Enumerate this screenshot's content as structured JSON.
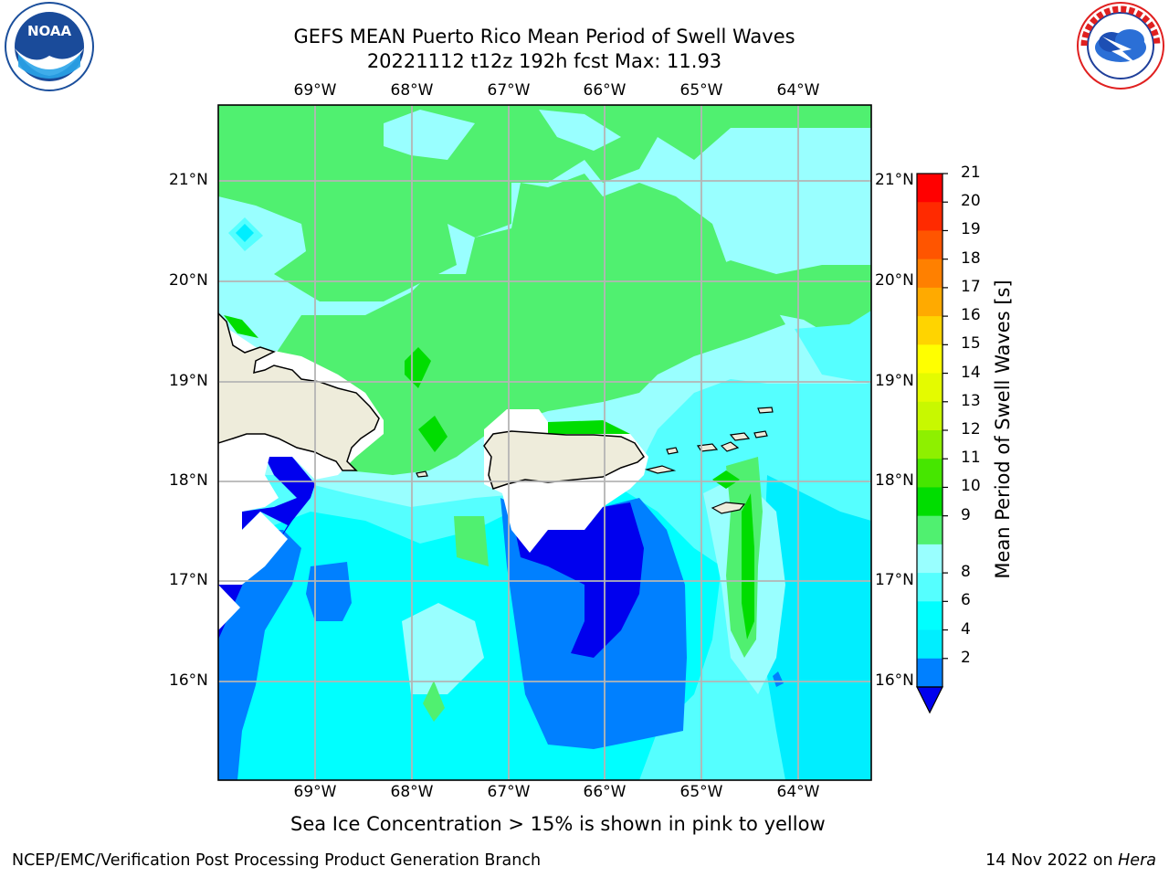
{
  "header": {
    "title_line1": "GEFS MEAN Puerto Rico Mean Period of Swell Waves",
    "title_line2": "20221112 t12z 192h fcst   Max: 11.93"
  },
  "map": {
    "lon_labels": [
      "69°W",
      "68°W",
      "67°W",
      "66°W",
      "65°W",
      "64°W"
    ],
    "lat_labels": [
      "21°N",
      "20°N",
      "19°N",
      "18°N",
      "17°N",
      "16°N"
    ]
  },
  "colorbar": {
    "title": "Mean Period of Swell Waves [s]",
    "ticks": [
      "21",
      "20",
      "19",
      "18",
      "17",
      "16",
      "15",
      "14",
      "13",
      "12",
      "11",
      "10",
      "9",
      "8",
      "6",
      "4",
      "2"
    ],
    "colors_top_to_bottom": [
      "#ff0000",
      "#ff2a00",
      "#ff5500",
      "#ff8000",
      "#ffaa00",
      "#ffd400",
      "#ffff00",
      "#e4fb00",
      "#c8f800",
      "#8ef000",
      "#46e600",
      "#00dd00",
      "#50f070",
      "#99ffff",
      "#55ffff",
      "#00ffff",
      "#00eeff",
      "#0080ff",
      "#0000ee"
    ],
    "accent_colors": {
      "land": "#eeecdb",
      "grid": "#b5b5b5"
    }
  },
  "note": "Sea Ice Concentration > 15% is shown in pink to yellow",
  "footer": {
    "left": "NCEP/EMC/Verification Post Processing Product Generation Branch",
    "date": "14 Nov 2022 on ",
    "host": "Hera"
  },
  "logos": {
    "noaa": {
      "icon": "noaa-logo",
      "text": "NOAA",
      "ring_text": "NATIONAL OCEANIC AND ATMOSPHERIC ADMINISTRATION · U.S. DEPARTMENT OF COMMERCE"
    },
    "nws": {
      "icon": "nws-logo",
      "ring_text": "NATIONAL WEATHER SERVICE"
    }
  }
}
